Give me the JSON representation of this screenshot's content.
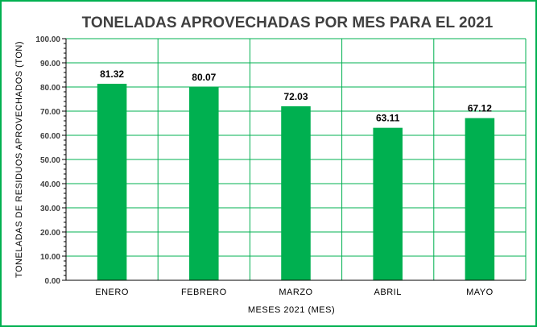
{
  "chart_data": {
    "type": "bar",
    "title": "TONELADAS APROVECHADAS POR MES PARA EL 2021",
    "xlabel": "MESES 2021 (MES)",
    "ylabel": "TONELADAS  DE RESIDUOS  APROVECHADOS   (TON)",
    "categories": [
      "ENERO",
      "FEBRERO",
      "MARZO",
      "ABRIL",
      "MAYO"
    ],
    "values": [
      81.32,
      80.07,
      72.03,
      63.11,
      67.12
    ],
    "data_labels": [
      "81.32",
      "80.07",
      "72.03",
      "63.11",
      "67.12"
    ],
    "ylim": [
      0,
      100
    ],
    "y_ticks": [
      "0.00",
      "10.00",
      "20.00",
      "30.00",
      "40.00",
      "50.00",
      "60.00",
      "70.00",
      "80.00",
      "90.00",
      "100.00"
    ],
    "grid": true,
    "legend": "none",
    "colors": {
      "bar": "#00b050",
      "grid": "#00b050",
      "border": "#00b050",
      "title": "#404040"
    }
  }
}
